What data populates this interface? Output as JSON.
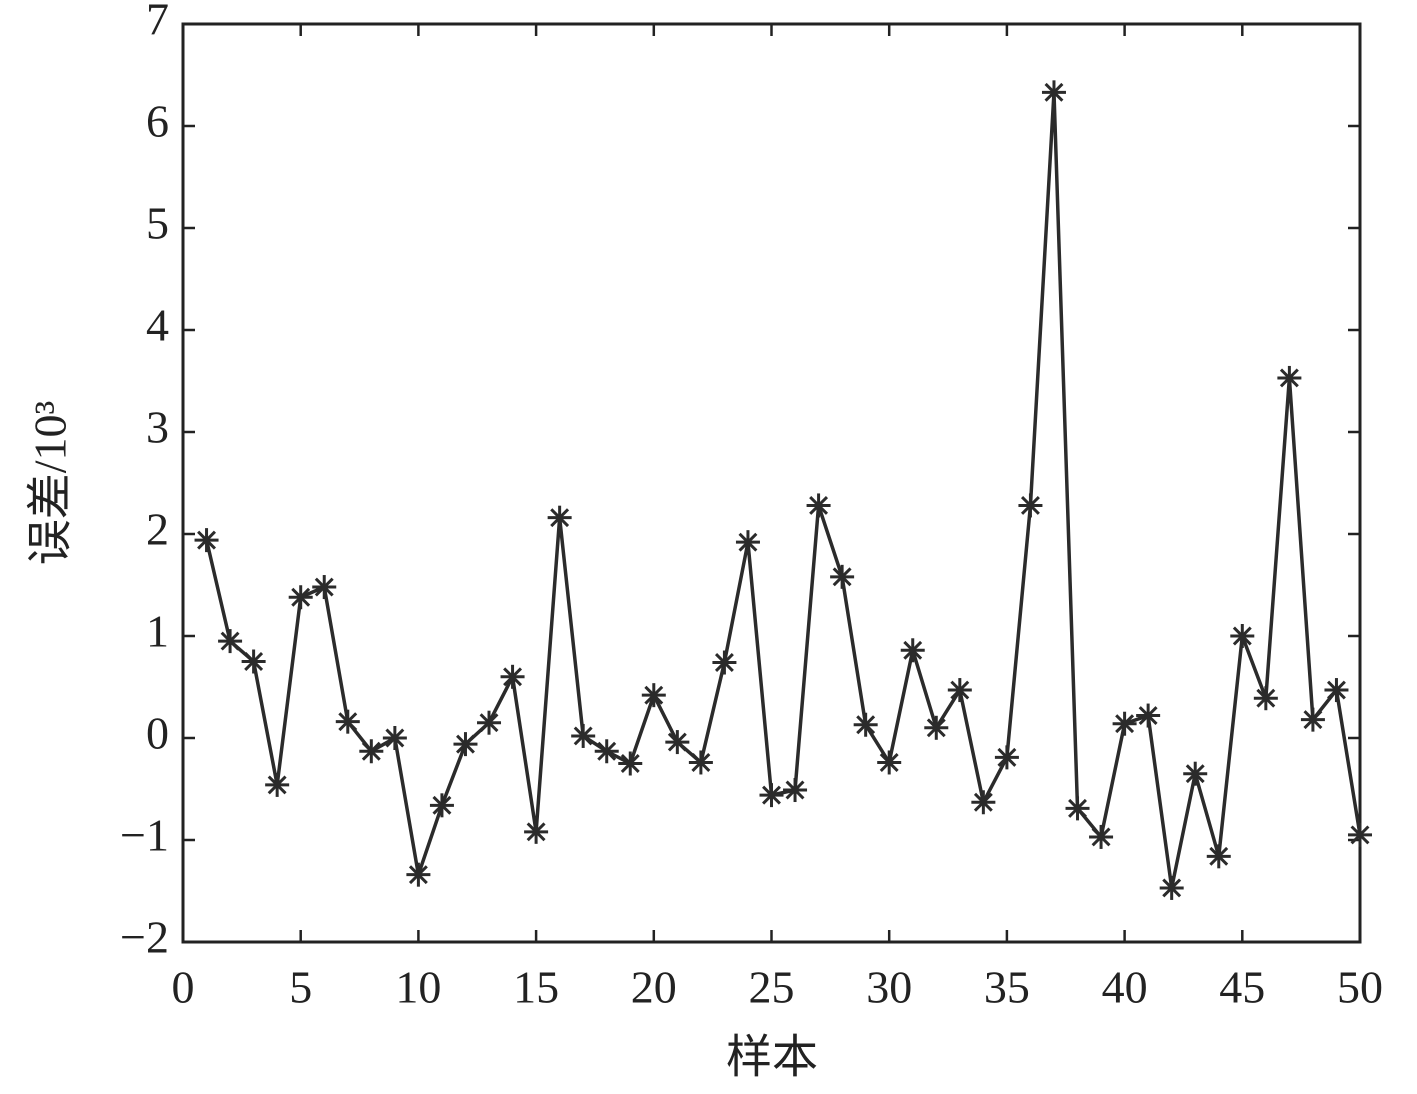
{
  "chart_data": {
    "type": "line",
    "xlabel": "样本",
    "ylabel": "误差/10³",
    "x": [
      1,
      2,
      3,
      4,
      5,
      6,
      7,
      8,
      9,
      10,
      11,
      12,
      13,
      14,
      15,
      16,
      17,
      18,
      19,
      20,
      21,
      22,
      23,
      24,
      25,
      26,
      27,
      28,
      29,
      30,
      31,
      32,
      33,
      34,
      35,
      36,
      37,
      38,
      39,
      40,
      41,
      42,
      43,
      44,
      45,
      46,
      47,
      48,
      49,
      50
    ],
    "values": [
      1.94,
      0.95,
      0.75,
      -0.46,
      1.38,
      1.48,
      0.16,
      -0.13,
      0,
      -1.34,
      -0.66,
      -0.06,
      0.15,
      0.6,
      -0.92,
      2.16,
      0.02,
      -0.13,
      -0.25,
      0.42,
      -0.04,
      -0.24,
      0.74,
      1.92,
      -0.56,
      -0.51,
      2.28,
      1.58,
      0.13,
      -0.24,
      0.86,
      0.1,
      0.47,
      -0.63,
      -0.19,
      2.28,
      6.33,
      -0.69,
      -0.97,
      0.14,
      0.22,
      -1.47,
      -0.35,
      -1.16,
      1.0,
      0.39,
      3.53,
      0.18,
      0.47,
      -0.95
    ],
    "color": "#2b2b2b",
    "marker": "asterisk",
    "xlim": [
      0,
      50
    ],
    "xticks": [
      0,
      5,
      10,
      15,
      20,
      25,
      30,
      35,
      40,
      45,
      50
    ],
    "ylim": [
      -2,
      7
    ],
    "yticks": [
      {
        "value": -2,
        "label": "−2"
      },
      {
        "value": -1,
        "label": "−1"
      },
      0,
      1,
      2,
      3,
      4,
      5,
      6,
      7
    ]
  }
}
